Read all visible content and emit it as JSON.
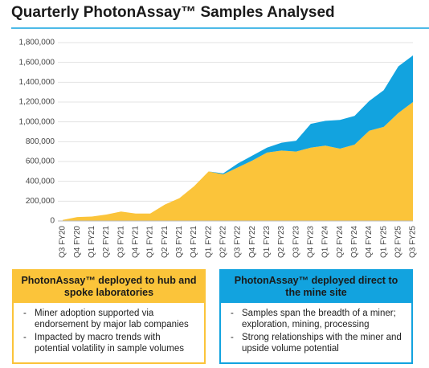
{
  "chart_data": {
    "type": "area",
    "stacked": true,
    "title": "Quarterly PhotonAssay™ Samples Analysed",
    "categories": [
      "Q3 FY20",
      "Q4 FY20",
      "Q1 FY21",
      "Q2 FY21",
      "Q3 FY21",
      "Q4 FY21",
      "Q1 FY21",
      "Q2 FY21",
      "Q3 FY21",
      "Q4 FY21",
      "Q1 FY22",
      "Q2 FY22",
      "Q3 FY22",
      "Q4 FY22",
      "Q1 FY23",
      "Q2 FY23",
      "Q3 FY23",
      "Q4 FY23",
      "Q1 FY24",
      "Q2 FY24",
      "Q3 FY24",
      "Q4 FY24",
      "Q1 FY25",
      "Q2 FY25",
      "Q3 FY25"
    ],
    "series": [
      {
        "color": "#fbc43a",
        "values": [
          10000,
          40000,
          45000,
          65000,
          95000,
          75000,
          75000,
          165000,
          230000,
          350000,
          500000,
          470000,
          540000,
          610000,
          690000,
          710000,
          700000,
          740000,
          760000,
          730000,
          770000,
          910000,
          950000,
          1090000,
          1200000
        ]
      },
      {
        "color": "#12a3df",
        "values": [
          0,
          0,
          0,
          0,
          0,
          0,
          0,
          0,
          0,
          0,
          0,
          10000,
          40000,
          50000,
          50000,
          80000,
          110000,
          240000,
          250000,
          290000,
          290000,
          300000,
          370000,
          470000,
          470000
        ]
      }
    ],
    "ylim": [
      0,
      1800000
    ],
    "yticks": [
      0,
      {
        "value": 200000,
        "label": "200,000"
      },
      {
        "value": 400000,
        "label": "400,000"
      },
      {
        "value": 600000,
        "label": "600,000"
      },
      {
        "value": 800000,
        "label": "800,000"
      },
      {
        "value": 1000000,
        "label": "1,000,000"
      },
      {
        "value": 1200000,
        "label": "1,200,000"
      },
      {
        "value": 1400000,
        "label": "1,400,000"
      },
      {
        "value": 1600000,
        "label": "1,600,000"
      },
      {
        "value": 1800000,
        "label": "1,800,000"
      }
    ],
    "grid": true
  },
  "panels": [
    {
      "title": "PhotonAssay™ deployed to hub and spoke laboratories",
      "color": "#fbc43a",
      "bullets": [
        "Miner adoption supported via endorsement by major lab companies",
        "Impacted by macro trends with potential volatility in sample volumes"
      ]
    },
    {
      "title": "PhotonAssay™ deployed direct to the mine site",
      "color": "#12a3df",
      "bullets": [
        "Samples span the breadth of a miner; exploration, mining, processing",
        "Strong relationships with the miner and upside volume potential"
      ]
    }
  ]
}
